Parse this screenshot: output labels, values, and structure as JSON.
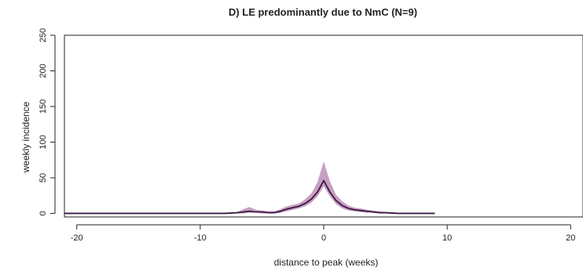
{
  "chart_data": {
    "type": "line",
    "title": "D) LE predominantly due to NmC (N=9)",
    "xlabel": "distance to peak (weeks)",
    "ylabel": "weekly incidence",
    "xlim": [
      -21,
      21
    ],
    "ylim": [
      -5,
      250
    ],
    "xticks": [
      -20,
      -10,
      0,
      10,
      20
    ],
    "yticks": [
      0,
      50,
      100,
      150,
      200,
      250
    ],
    "x_tick_labels": [
      "-20",
      "-10",
      "0",
      "10",
      "20"
    ],
    "y_tick_labels": [
      "0",
      "50",
      "100",
      "150",
      "200",
      "250"
    ],
    "grid": false,
    "colors": {
      "line": "#3a1840",
      "band": "#b57fb0",
      "axis": "#222222"
    },
    "series": [
      {
        "x": [
          -21,
          -8,
          -7,
          -6.5,
          -6,
          -5.5,
          -5,
          -4.5,
          -4,
          -3.5,
          -3,
          -2.5,
          -2,
          -1.5,
          -1,
          -0.5,
          0,
          0.5,
          1,
          1.5,
          2,
          2.5,
          3,
          3.5,
          4,
          4.5,
          5,
          6,
          7,
          8,
          9
        ],
        "y": [
          0,
          0,
          1,
          2,
          3,
          2,
          2,
          1,
          1,
          3,
          6,
          8,
          10,
          14,
          20,
          30,
          46,
          30,
          18,
          11,
          7,
          5,
          4,
          3,
          2,
          1,
          1,
          0,
          0,
          0,
          0
        ],
        "lower": [
          0,
          0,
          0,
          0,
          1,
          1,
          0,
          0,
          0,
          1,
          3,
          5,
          7,
          10,
          15,
          24,
          38,
          24,
          13,
          7,
          4,
          3,
          2,
          1,
          1,
          0,
          0,
          0,
          0,
          0,
          0
        ],
        "upper": [
          0,
          0,
          2,
          6,
          9,
          5,
          4,
          3,
          3,
          6,
          10,
          12,
          14,
          20,
          28,
          44,
          73,
          45,
          26,
          17,
          11,
          8,
          7,
          5,
          4,
          3,
          2,
          1,
          0,
          0,
          0
        ]
      }
    ]
  }
}
